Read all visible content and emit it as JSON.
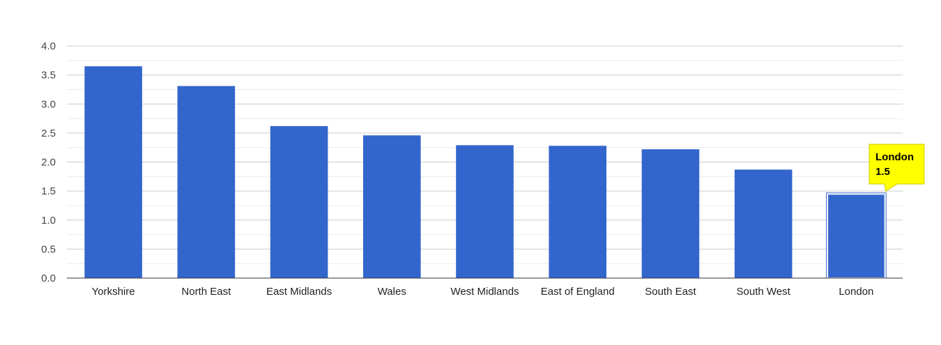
{
  "chart_data": {
    "type": "bar",
    "title": "",
    "xlabel": "",
    "ylabel": "",
    "categories": [
      "Yorkshire",
      "North East",
      "East Midlands",
      "Wales",
      "West Midlands",
      "East of England",
      "South East",
      "South West",
      "London"
    ],
    "values": [
      3.65,
      3.31,
      2.62,
      2.46,
      2.29,
      2.28,
      2.22,
      1.87,
      1.45
    ],
    "ylim": [
      0,
      4
    ],
    "yticks": [
      "0.0",
      "0.5",
      "1.0",
      "1.5",
      "2.0",
      "2.5",
      "3.0",
      "3.5",
      "4.0"
    ],
    "grid": true,
    "legend": "none",
    "bar_color": "#3366cc",
    "highlight": {
      "category": "London",
      "label": "London",
      "value_label": "1.5",
      "tooltip_color": "#ffff00"
    }
  }
}
